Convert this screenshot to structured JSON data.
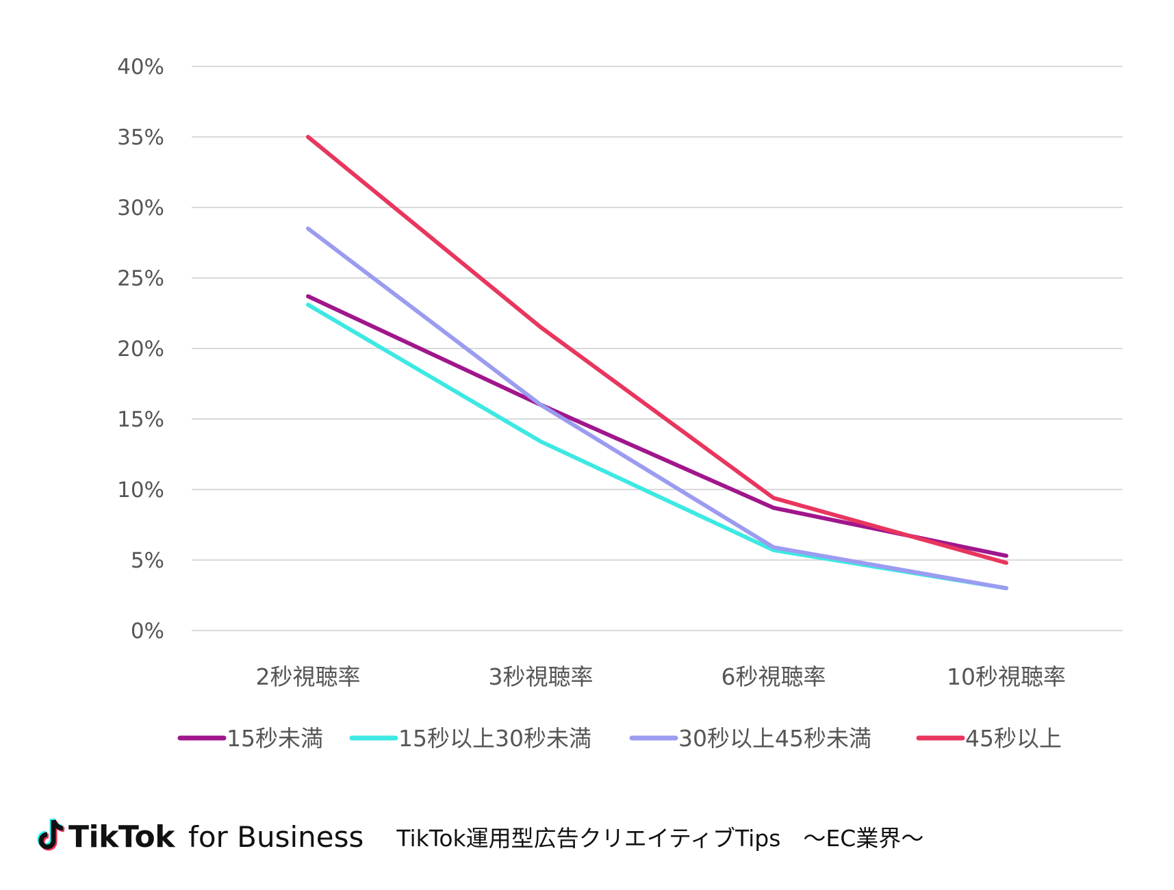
{
  "chart_data": {
    "type": "line",
    "categories": [
      "2秒視聴率",
      "3秒視聴率",
      "6秒視聴率",
      "10秒視聴率"
    ],
    "series": [
      {
        "name": "15秒未満",
        "color": "#a0168c",
        "values": [
          23.7,
          16.0,
          8.7,
          5.3
        ]
      },
      {
        "name": "15秒以上30秒未満",
        "color": "#3ee8e3",
        "values": [
          23.1,
          13.4,
          5.7,
          3.0
        ]
      },
      {
        "name": "30秒以上45秒未満",
        "color": "#9b9cf0",
        "values": [
          28.5,
          16.0,
          5.9,
          3.0
        ]
      },
      {
        "name": "45秒以上",
        "color": "#e8365e",
        "values": [
          35.0,
          21.5,
          9.4,
          4.8
        ]
      }
    ],
    "yticks": [
      "0%",
      "5%",
      "10%",
      "15%",
      "20%",
      "25%",
      "30%",
      "35%",
      "40%"
    ],
    "ylim": [
      0,
      40
    ],
    "grid": true,
    "legend": "bottom",
    "title": "",
    "xlabel": "",
    "ylabel": ""
  },
  "footer": {
    "brand": "TikTok",
    "brand_sub": "for Business",
    "caption": "TikTok運用型広告クリエイティブTips　～EC業界～"
  }
}
